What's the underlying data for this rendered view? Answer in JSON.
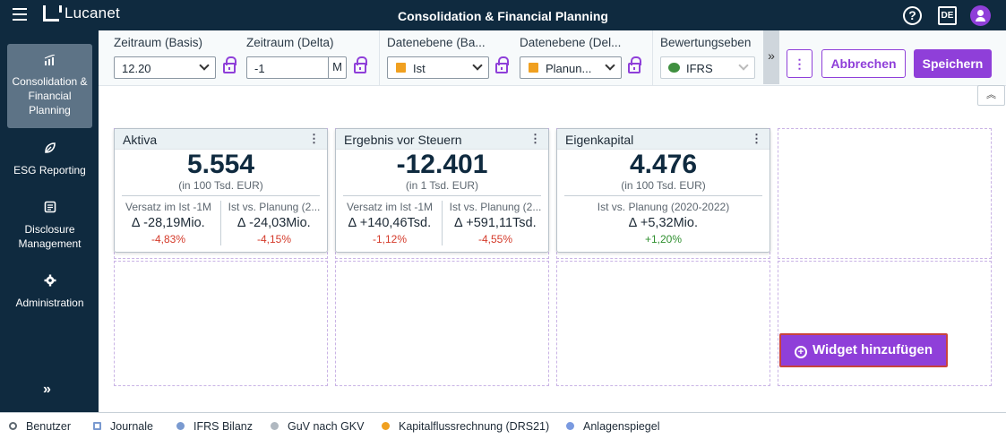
{
  "app": {
    "brand": "Lucanet",
    "title": "Consolidation & Financial Planning",
    "help_label": "?",
    "language": "DE"
  },
  "sidebar": {
    "items": [
      {
        "label": "Consolidation & Financial Planning",
        "icon": "chart-icon"
      },
      {
        "label": "ESG Reporting",
        "icon": "leaf-icon"
      },
      {
        "label": "Disclosure Management",
        "icon": "document-icon"
      },
      {
        "label": "Administration",
        "icon": "gear-icon"
      }
    ],
    "expand_label": "»"
  },
  "filters": {
    "zeitraum_basis": {
      "label": "Zeitraum (Basis)",
      "value": "12.20"
    },
    "zeitraum_delta": {
      "label": "Zeitraum (Delta)",
      "value": "-1",
      "suffix": "M"
    },
    "datenebene_basis": {
      "label": "Datenebene (Ba...",
      "value": "Ist"
    },
    "datenebene_delta": {
      "label": "Datenebene (Del...",
      "value": "Planun..."
    },
    "bewertungsebene": {
      "label": "Bewertungseben",
      "value": "IFRS"
    },
    "more_label": "»",
    "kebab_label": "⋮",
    "cancel_label": "Abbrechen",
    "save_label": "Speichern"
  },
  "collapse_label": "︽",
  "widgets": [
    {
      "title": "Aktiva",
      "value": "5.554",
      "unit": "(in 100 Tsd. EUR)",
      "columns": [
        {
          "label": "Versatz im Ist -1M",
          "delta": "∆ -28,19Mio.",
          "pct": "-4,83%",
          "trend": "negative"
        },
        {
          "label": "Ist vs. Planung (2...",
          "delta": "∆ -24,03Mio.",
          "pct": "-4,15%",
          "trend": "negative"
        }
      ]
    },
    {
      "title": "Ergebnis vor Steuern",
      "value": "-12.401",
      "unit": "(in 1 Tsd. EUR)",
      "columns": [
        {
          "label": "Versatz im Ist -1M",
          "delta": "∆ +140,46Tsd.",
          "pct": "-1,12%",
          "trend": "negative"
        },
        {
          "label": "Ist vs. Planung (2...",
          "delta": "∆ +591,11Tsd.",
          "pct": "-4,55%",
          "trend": "negative"
        }
      ]
    },
    {
      "title": "Eigenkapital",
      "value": "4.476",
      "unit": "(in 100 Tsd. EUR)",
      "columns": [
        {
          "label": "Ist vs. Planung (2020-2022)",
          "delta": "∆ +5,32Mio.",
          "pct": "+1,20%",
          "trend": "positive"
        }
      ]
    }
  ],
  "add_widget_label": "Widget hinzufügen",
  "statusbar": [
    {
      "label": "Benutzer",
      "icon": "users-icon",
      "color": "#5d6770"
    },
    {
      "label": "Journale",
      "icon": "journal-icon",
      "color": "#7a9ad0"
    },
    {
      "label": "IFRS Bilanz",
      "icon": "person-icon",
      "color": "#7a9ad0"
    },
    {
      "label": "GuV nach GKV",
      "icon": "person-icon",
      "color": "#b0b8c0"
    },
    {
      "label": "Kapitalflussrechnung (DRS21)",
      "icon": "dot-icon",
      "color": "#f0a020"
    },
    {
      "label": "Anlagenspiegel",
      "icon": "dot-icon",
      "color": "#7a9ae0"
    }
  ],
  "colors": {
    "accent": "#8f3fd9",
    "navy": "#0f2a3f",
    "negative": "#d43a2a",
    "positive": "#2f8f2f"
  }
}
